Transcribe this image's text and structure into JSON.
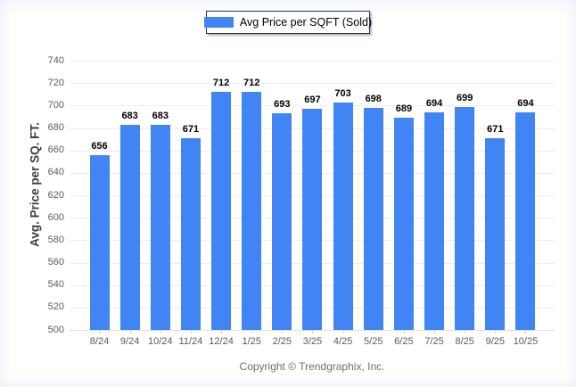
{
  "legend": {
    "label": "Avg Price per SQFT (Sold)"
  },
  "footer": {
    "copyright": "Copyright © Trendgraphix, Inc."
  },
  "colors": {
    "bar": "#4184f4",
    "legend_border": "#17365d",
    "gridline": "#ededed",
    "axis_text": "#5f5a54",
    "value_label": "#000000"
  },
  "chart_data": {
    "type": "bar",
    "title": "",
    "xlabel": "",
    "ylabel": "Avg. Price per SQ. FT.",
    "series_name": "Avg Price per SQFT (Sold)",
    "categories": [
      "8/24",
      "9/24",
      "10/24",
      "11/24",
      "12/24",
      "1/25",
      "2/25",
      "3/25",
      "4/25",
      "5/25",
      "6/25",
      "7/25",
      "8/25",
      "9/25",
      "10/25"
    ],
    "values": [
      656,
      683,
      683,
      671,
      712,
      712,
      693,
      697,
      703,
      698,
      689,
      694,
      699,
      671,
      694
    ],
    "ylim": [
      500,
      740
    ],
    "ytick_step": 20,
    "grid": true,
    "legend_position": "top-center",
    "bar_color": "#4184f4"
  }
}
